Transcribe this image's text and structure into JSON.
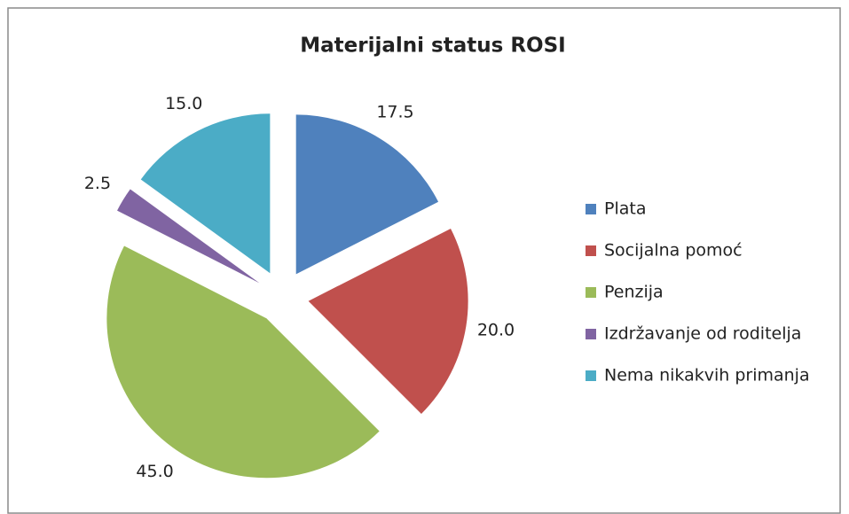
{
  "chart_data": {
    "type": "pie",
    "title": "Materijalni status ROSI",
    "categories": [
      "Plata",
      "Socijalna pomoć",
      "Penzija",
      "Izdržavanje od roditelja",
      "Nema nikakvih primanja"
    ],
    "values": [
      17.5,
      20,
      45,
      2.5,
      15
    ],
    "value_labels": [
      "17.5",
      "20.0",
      "45.0",
      "2.5",
      "15.0"
    ],
    "colors": [
      "#4f81bd",
      "#c0504d",
      "#9bbb59",
      "#8064a2",
      "#4bacc6"
    ],
    "exploded": true,
    "legend": "right"
  }
}
